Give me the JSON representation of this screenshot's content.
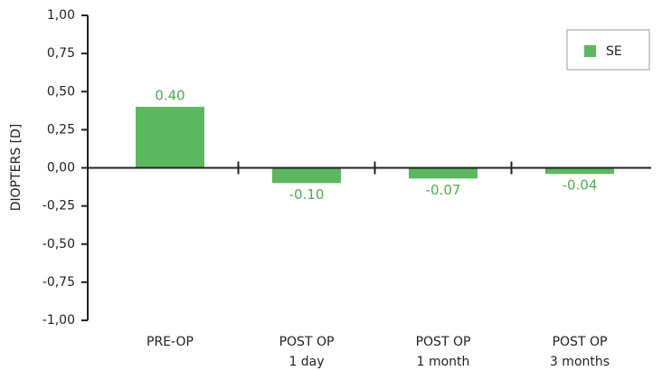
{
  "chart_data": {
    "type": "bar",
    "y_label": "DIOPTERS [D]",
    "categories": [
      [
        "PRE-OP"
      ],
      [
        "POST OP",
        "1 day"
      ],
      [
        "POST OP",
        "1 month"
      ],
      [
        "POST OP",
        "3 months"
      ]
    ],
    "series": [
      {
        "name": "SE",
        "color": "#5cb85f",
        "values": [
          0.4,
          -0.1,
          -0.07,
          -0.04
        ],
        "value_labels": [
          "0.40",
          "-0.10",
          "-0.07",
          "-0.04"
        ]
      }
    ],
    "ylim": [
      -1,
      1
    ],
    "yticks": [
      {
        "value": 1,
        "label": "1,00"
      },
      {
        "value": 0.75,
        "label": "0,75"
      },
      {
        "value": 0.5,
        "label": "0,50"
      },
      {
        "value": 0.25,
        "label": "0,25"
      },
      {
        "value": 0,
        "label": "0,00"
      },
      {
        "value": -0.25,
        "label": "-0,25"
      },
      {
        "value": -0.5,
        "label": "-0,50"
      },
      {
        "value": -0.75,
        "label": "-0,75"
      },
      {
        "value": -1,
        "label": "-1,00"
      }
    ],
    "legend": "top-right"
  }
}
